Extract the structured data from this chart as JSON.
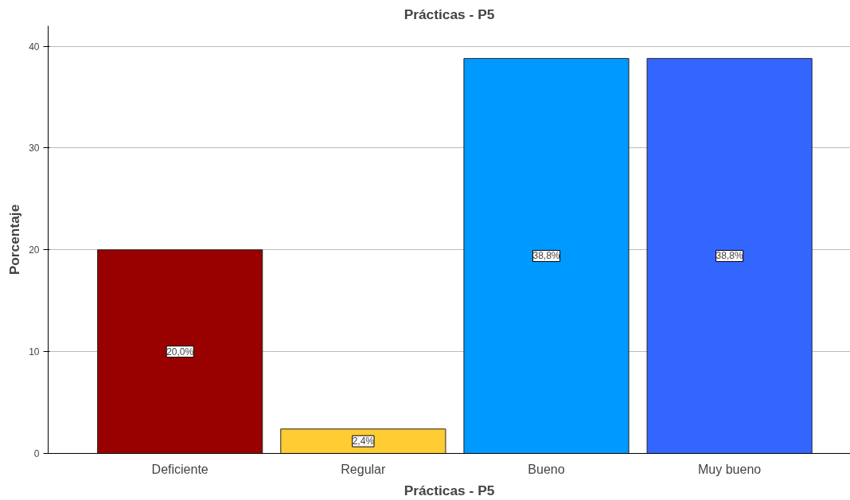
{
  "chart_data": {
    "type": "bar",
    "title": "Prácticas - P5",
    "xlabel": "Prácticas - P5",
    "ylabel": "Porcentaje",
    "categories": [
      "Deficiente",
      "Regular",
      "Bueno",
      "Muy bueno"
    ],
    "values": [
      20.0,
      2.4,
      38.8,
      38.8
    ],
    "colors": [
      "#990000",
      "#ffcc33",
      "#0099ff",
      "#3366ff"
    ],
    "value_labels": [
      "20,0%",
      "2,4%",
      "38,8%",
      "38,8%"
    ],
    "ylim": [
      0,
      42
    ],
    "yticks": [
      0,
      10,
      20,
      30,
      40
    ],
    "grid": "y"
  }
}
